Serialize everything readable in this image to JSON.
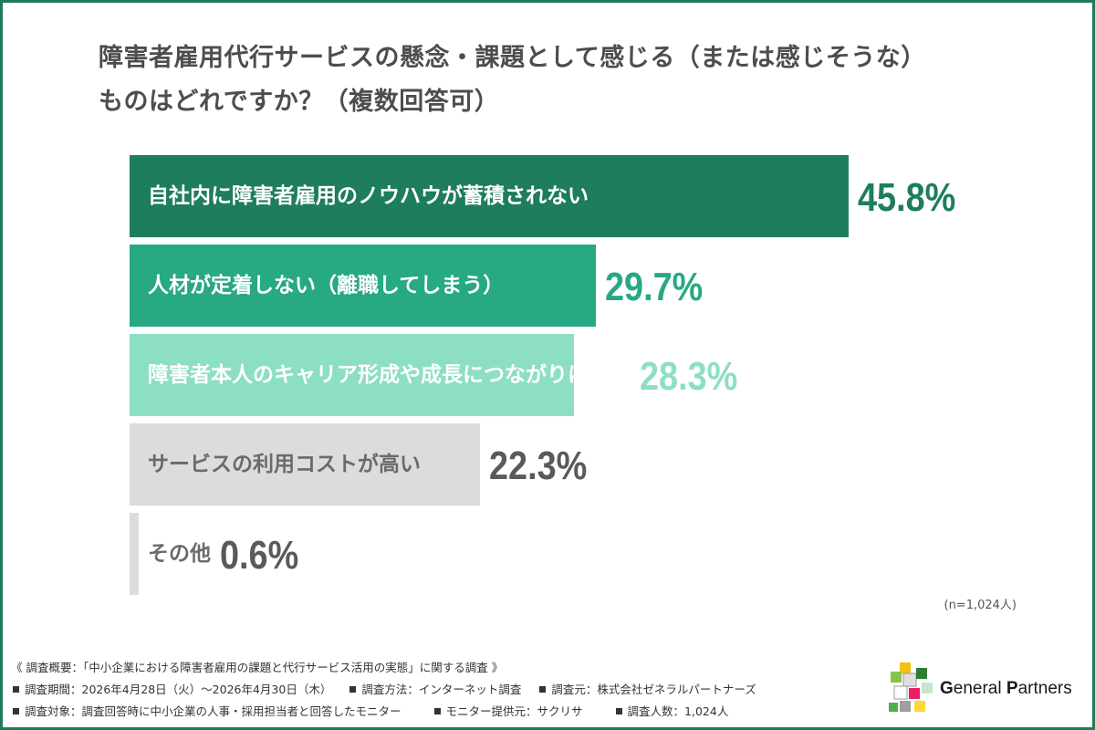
{
  "title": {
    "line1": "障害者雇用代行サービスの懸念・課題として感じる（または感じそうな）",
    "line2": "ものはどれですか？（複数回答可）"
  },
  "chart_data": {
    "type": "bar",
    "orientation": "horizontal",
    "categories": [
      "自社内に障害者雇用のノウハウが蓄積されない",
      "人材が定着しない（離職してしまう）",
      "障害者本人のキャリア形成や成長につながりにくい",
      "サービスの利用コストが高い",
      "その他"
    ],
    "values": [
      45.8,
      29.7,
      28.3,
      22.3,
      0.6
    ],
    "value_labels": [
      "45.8%",
      "29.7%",
      "28.3%",
      "22.3%",
      "0.6%"
    ],
    "bar_colors": [
      "#1e7d5c",
      "#27a983",
      "#8ddfc4",
      "#dcdcdc",
      "#dcdcdc"
    ],
    "label_colors": [
      "#ffffff",
      "#ffffff",
      "#ffffff",
      "#6a6a6a",
      "#6a6a6a"
    ],
    "value_colors": [
      "#1e7d5c",
      "#27a983",
      "#8ddfc4",
      "#5a5a5a",
      "#5a5a5a"
    ],
    "xlim": [
      0,
      45.8
    ],
    "note": "(n=1,024人)"
  },
  "footer": {
    "heading": "《 調査概要：「中小企業における障害者雇用の課題と代行サービス活用の実態」に関する調査 》",
    "period": "調査期間：2026年4月28日（火）～2026年4月30日（木）",
    "method": "調査方法：インターネット調査",
    "organizer": "調査元：株式会社ゼネラルパートナーズ",
    "target": "調査対象：調査回答時に中小企業の人事・採用担当者と回答したモニター",
    "provider": "モニター提供元：サクリサ",
    "count": "調査人数：1,024人"
  },
  "logo": {
    "text_g": "G",
    "text_eneral": "eneral ",
    "text_p": "P",
    "text_artners": "artners"
  },
  "colors": {
    "border": "#1f7a5a",
    "dark_green": "#1e7d5c",
    "mid_green": "#27a983",
    "light_green": "#8ddfc4",
    "gray": "#dcdcdc"
  }
}
